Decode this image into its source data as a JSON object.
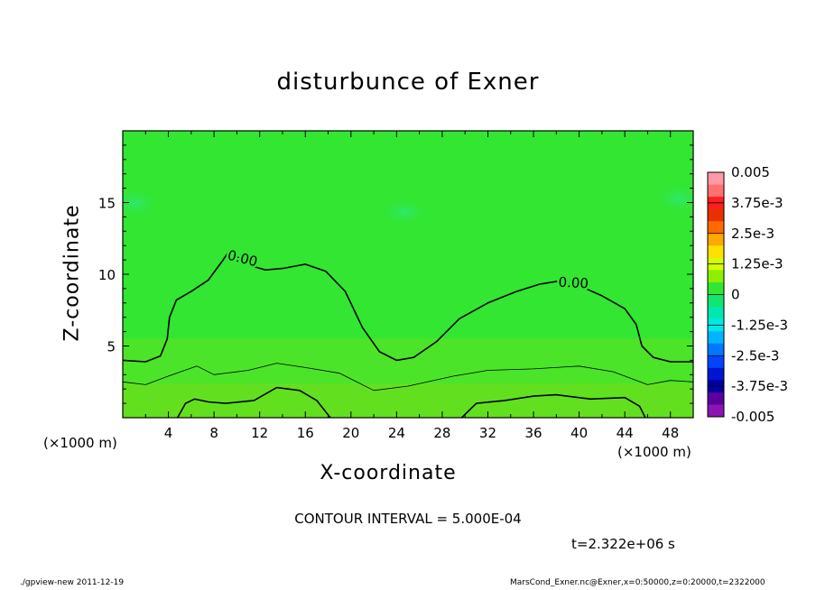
{
  "title": "disturbunce of Exner",
  "xlabel": "X-coordinate",
  "ylabel": "Z-coordinate",
  "x_unit": "(×1000 m)",
  "contour_interval_text": "CONTOUR INTERVAL = 5.000E-04",
  "time_text": "t=2.322e+06 s",
  "footer_left": "./gpview-new   2011-12-19",
  "footer_right": "MarsCond_Exner.nc@Exner,x=0:50000,z=0:20000,t=2322000",
  "contour_label": "0.00",
  "colors": {
    "background_field": "#32e632",
    "contour_line": "#000000"
  },
  "chart_data": {
    "type": "heatmap",
    "title": "disturbunce of Exner",
    "xlabel": "X-coordinate",
    "ylabel": "Z-coordinate",
    "xlim": [
      0,
      50
    ],
    "ylim": [
      0,
      20
    ],
    "x_ticks": [
      4,
      8,
      12,
      16,
      20,
      24,
      28,
      32,
      36,
      40,
      44,
      48
    ],
    "y_ticks": [
      5,
      10,
      15
    ],
    "zero_contour": [
      {
        "x": 0,
        "z": 4.0
      },
      {
        "x": 2,
        "z": 3.9
      },
      {
        "x": 3.3,
        "z": 4.3
      },
      {
        "x": 3.9,
        "z": 5.5
      },
      {
        "x": 4.1,
        "z": 7.0
      },
      {
        "x": 4.7,
        "z": 8.2
      },
      {
        "x": 6,
        "z": 8.8
      },
      {
        "x": 7.5,
        "z": 9.6
      },
      {
        "x": 8.8,
        "z": 11.0
      },
      {
        "x": 9.3,
        "z": 11.6
      },
      {
        "x": 11.2,
        "z": 10.6
      },
      {
        "x": 12.5,
        "z": 10.3
      },
      {
        "x": 14,
        "z": 10.4
      },
      {
        "x": 16,
        "z": 10.7
      },
      {
        "x": 17.8,
        "z": 10.2
      },
      {
        "x": 19.5,
        "z": 8.8
      },
      {
        "x": 21,
        "z": 6.3
      },
      {
        "x": 22.5,
        "z": 4.6
      },
      {
        "x": 24,
        "z": 4.0
      },
      {
        "x": 25.5,
        "z": 4.2
      },
      {
        "x": 27.5,
        "z": 5.3
      },
      {
        "x": 29.5,
        "z": 6.9
      },
      {
        "x": 32,
        "z": 8.0
      },
      {
        "x": 34.5,
        "z": 8.8
      },
      {
        "x": 36.5,
        "z": 9.3
      },
      {
        "x": 38,
        "z": 9.5
      },
      {
        "x": 40,
        "z": 9.2
      },
      {
        "x": 42,
        "z": 8.5
      },
      {
        "x": 44,
        "z": 7.6
      },
      {
        "x": 45,
        "z": 6.5
      },
      {
        "x": 45.5,
        "z": 5.0
      },
      {
        "x": 46.5,
        "z": 4.2
      },
      {
        "x": 48,
        "z": 3.9
      },
      {
        "x": 50,
        "z": 3.9
      }
    ],
    "thin_contour": [
      {
        "x": 0,
        "z": 2.5
      },
      {
        "x": 2,
        "z": 2.3
      },
      {
        "x": 4,
        "z": 2.9
      },
      {
        "x": 6.5,
        "z": 3.6
      },
      {
        "x": 8,
        "z": 3.0
      },
      {
        "x": 11,
        "z": 3.3
      },
      {
        "x": 13.5,
        "z": 3.8
      },
      {
        "x": 16,
        "z": 3.5
      },
      {
        "x": 19,
        "z": 3.1
      },
      {
        "x": 22,
        "z": 1.9
      },
      {
        "x": 25,
        "z": 2.2
      },
      {
        "x": 29,
        "z": 2.9
      },
      {
        "x": 32,
        "z": 3.3
      },
      {
        "x": 36,
        "z": 3.4
      },
      {
        "x": 40,
        "z": 3.6
      },
      {
        "x": 43,
        "z": 3.2
      },
      {
        "x": 46,
        "z": 2.3
      },
      {
        "x": 48,
        "z": 2.6
      },
      {
        "x": 50,
        "z": 2.5
      }
    ],
    "lower_contour_left": [
      {
        "x": 4.8,
        "z": 0
      },
      {
        "x": 5.5,
        "z": 1.0
      },
      {
        "x": 6.3,
        "z": 1.3
      },
      {
        "x": 7.5,
        "z": 1.1
      },
      {
        "x": 9,
        "z": 1.0
      },
      {
        "x": 11.5,
        "z": 1.2
      },
      {
        "x": 13.5,
        "z": 2.1
      },
      {
        "x": 15.5,
        "z": 1.9
      },
      {
        "x": 17,
        "z": 1.2
      },
      {
        "x": 18.2,
        "z": 0
      }
    ],
    "lower_contour_right": [
      {
        "x": 29.7,
        "z": 0
      },
      {
        "x": 31,
        "z": 1.0
      },
      {
        "x": 33.5,
        "z": 1.2
      },
      {
        "x": 36,
        "z": 1.5
      },
      {
        "x": 38,
        "z": 1.6
      },
      {
        "x": 41,
        "z": 1.3
      },
      {
        "x": 44,
        "z": 1.4
      },
      {
        "x": 45.3,
        "z": 0.8
      },
      {
        "x": 45.8,
        "z": 0
      }
    ],
    "colorbar": {
      "labels": [
        "0.005",
        "3.75e-3",
        "2.5e-3",
        "1.25e-3",
        "0",
        "-1.25e-3",
        "-2.5e-3",
        "-3.75e-3",
        "-0.005"
      ],
      "colors": [
        "#ff9aa8",
        "#ff7070",
        "#ff1e1e",
        "#e83000",
        "#ff6a00",
        "#ffa800",
        "#ffe000",
        "#d2ff00",
        "#8cf000",
        "#32e632",
        "#10e670",
        "#00e8b0",
        "#00e8e8",
        "#00b4ff",
        "#0078ff",
        "#0046ff",
        "#0014d2",
        "#0000a0",
        "#5a00a0",
        "#8c14b4"
      ]
    }
  }
}
